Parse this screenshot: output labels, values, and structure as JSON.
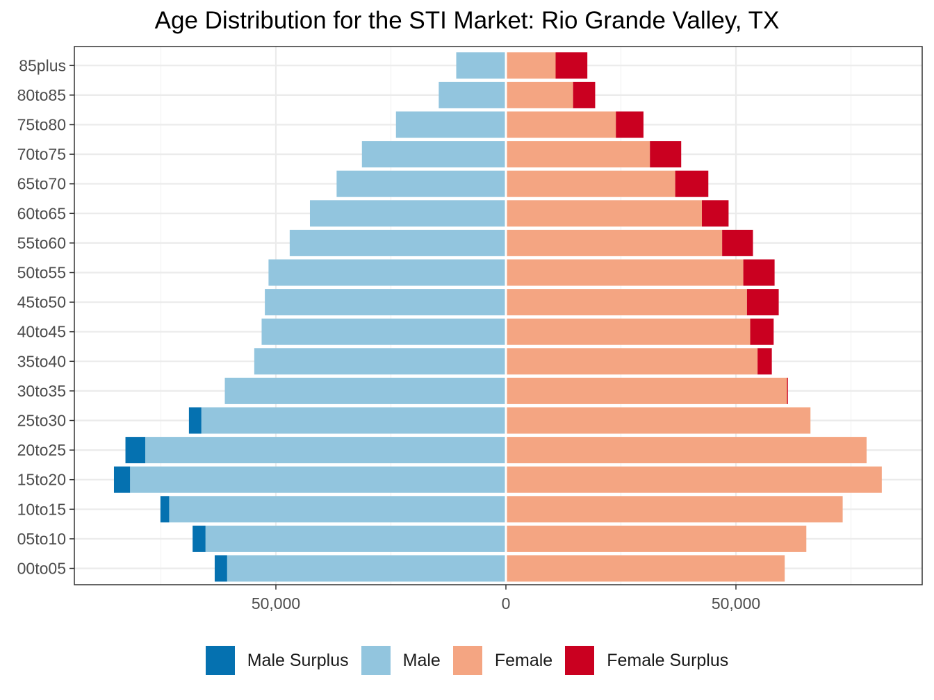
{
  "chart_data": {
    "type": "bar",
    "orientation": "horizontal",
    "title": "Age Distribution for the STI Market: Rio Grande Valley, TX",
    "xlabel": "",
    "ylabel": "",
    "xlim": [
      -93000,
      90000
    ],
    "x_ticks": [
      -50000,
      0,
      50000
    ],
    "x_tick_labels": [
      "50,000",
      "0",
      "50,000"
    ],
    "grid": true,
    "legend_position": "bottom",
    "categories": [
      "00to05",
      "05to10",
      "10to15",
      "15to20",
      "20to25",
      "25to30",
      "30to35",
      "35to40",
      "40to45",
      "45to50",
      "50to55",
      "55to60",
      "60to65",
      "65to70",
      "70to75",
      "75to80",
      "80to85",
      "85plus"
    ],
    "series": [
      {
        "name": "Male Surplus",
        "color": "#0571b0",
        "side": "left",
        "values": [
          2700,
          2800,
          1900,
          3500,
          4300,
          2700,
          0,
          0,
          0,
          0,
          0,
          0,
          0,
          0,
          0,
          0,
          0,
          0
        ]
      },
      {
        "name": "Male",
        "color": "#92c5de",
        "side": "left",
        "values": [
          60600,
          65300,
          73200,
          81700,
          78400,
          66200,
          61100,
          54700,
          53100,
          52400,
          51600,
          47000,
          42600,
          36800,
          31300,
          23900,
          14600,
          10800
        ]
      },
      {
        "name": "Female",
        "color": "#f4a582",
        "side": "right",
        "values": [
          60600,
          65300,
          73200,
          81700,
          78400,
          66200,
          61100,
          54700,
          53100,
          52400,
          51600,
          47000,
          42600,
          36800,
          31300,
          23900,
          14600,
          10800
        ]
      },
      {
        "name": "Female Surplus",
        "color": "#ca0020",
        "side": "right",
        "values": [
          0,
          0,
          0,
          0,
          0,
          0,
          200,
          3100,
          5100,
          6900,
          6800,
          6700,
          5800,
          7200,
          6800,
          6000,
          4800,
          6900
        ]
      }
    ]
  }
}
